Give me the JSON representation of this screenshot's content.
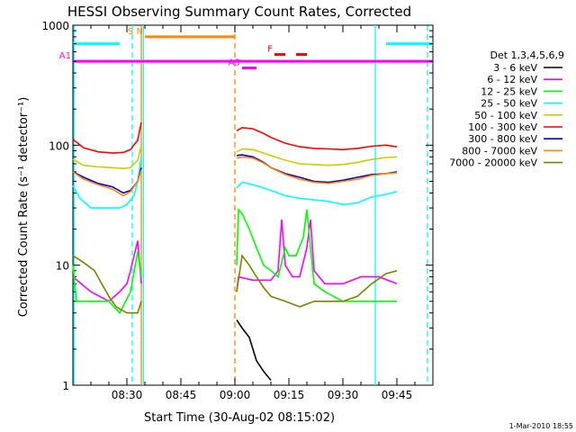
{
  "chart_data": {
    "type": "line",
    "title": "HESSI Observing Summary Count Rates, Corrected",
    "xlabel": "Start Time (30-Aug-02 08:15:02)",
    "ylabel": "Corrected Count Rate (s⁻¹ detector⁻¹)",
    "footer": "1-Mar-2010 18:55",
    "legend_title": "Det 1,3,4,5,6,9",
    "legend_placement": "right",
    "yscale": "log",
    "xlim_min": [
      15,
      115
    ],
    "ylim": [
      1,
      1000
    ],
    "xticks": [
      {
        "v": 30,
        "label": "08:30"
      },
      {
        "v": 45,
        "label": "08:45"
      },
      {
        "v": 60,
        "label": "09:00"
      },
      {
        "v": 75,
        "label": "09:15"
      },
      {
        "v": 90,
        "label": "09:30"
      },
      {
        "v": 105,
        "label": "09:45"
      }
    ],
    "yticks": [
      {
        "v": 1,
        "label": "1"
      },
      {
        "v": 10,
        "label": "10"
      },
      {
        "v": 100,
        "label": "100"
      },
      {
        "v": 1000,
        "label": "1000"
      }
    ],
    "series": [
      {
        "name": "3 - 6 keV",
        "color": "#000000",
        "points": [
          [
            60.5,
            3.5
          ],
          [
            62,
            3.0
          ],
          [
            64,
            2.5
          ],
          [
            66,
            1.6
          ],
          [
            68,
            1.3
          ],
          [
            70,
            1.1
          ]
        ]
      },
      {
        "name": "6 - 12 keV",
        "color": "#ff00ff",
        "points": [
          [
            15,
            8
          ],
          [
            20,
            6
          ],
          [
            25,
            5
          ],
          [
            28,
            6
          ],
          [
            30,
            7
          ],
          [
            31,
            9
          ],
          [
            32,
            12
          ],
          [
            33,
            16
          ],
          [
            34,
            7
          ],
          [
            60.5,
            6
          ],
          [
            61,
            8
          ],
          [
            65,
            7.5
          ],
          [
            70,
            7.5
          ],
          [
            72,
            9
          ],
          [
            73,
            24
          ],
          [
            74,
            10
          ],
          [
            76,
            8
          ],
          [
            78,
            8
          ],
          [
            80,
            14
          ],
          [
            81,
            24
          ],
          [
            82,
            9
          ],
          [
            85,
            7
          ],
          [
            90,
            7
          ],
          [
            95,
            8
          ],
          [
            100,
            8
          ],
          [
            105,
            7
          ]
        ]
      },
      {
        "name": "12 - 25 keV",
        "color": "#00ff00",
        "points": [
          [
            15,
            10
          ],
          [
            16,
            5
          ],
          [
            20,
            5
          ],
          [
            25,
            5
          ],
          [
            28,
            4
          ],
          [
            31,
            6
          ],
          [
            33,
            13
          ],
          [
            34,
            8
          ],
          [
            60.5,
            10
          ],
          [
            61,
            29
          ],
          [
            62,
            27
          ],
          [
            64,
            20
          ],
          [
            66,
            14
          ],
          [
            68,
            10
          ],
          [
            70,
            9
          ],
          [
            72,
            8
          ],
          [
            74,
            14
          ],
          [
            75,
            12
          ],
          [
            77,
            12
          ],
          [
            79,
            17
          ],
          [
            80,
            29
          ],
          [
            81,
            14
          ],
          [
            82,
            7
          ],
          [
            85,
            6
          ],
          [
            90,
            5
          ],
          [
            95,
            5
          ],
          [
            100,
            5
          ],
          [
            105,
            5
          ]
        ]
      },
      {
        "name": "25 - 50 keV",
        "color": "#00ffff",
        "points": [
          [
            15,
            46
          ],
          [
            17,
            36
          ],
          [
            20,
            30
          ],
          [
            25,
            30
          ],
          [
            28,
            30
          ],
          [
            30,
            32
          ],
          [
            32,
            38
          ],
          [
            33,
            50
          ],
          [
            34,
            80
          ],
          [
            60.5,
            44
          ],
          [
            62,
            49
          ],
          [
            65,
            47
          ],
          [
            68,
            44
          ],
          [
            70,
            42
          ],
          [
            74,
            38
          ],
          [
            78,
            36
          ],
          [
            82,
            35
          ],
          [
            86,
            34
          ],
          [
            90,
            32
          ],
          [
            94,
            33
          ],
          [
            98,
            37
          ],
          [
            102,
            39
          ],
          [
            105,
            41
          ]
        ]
      },
      {
        "name": "50 - 100 keV",
        "color": "#cccc00",
        "points": [
          [
            15,
            76
          ],
          [
            18,
            68
          ],
          [
            22,
            66
          ],
          [
            26,
            65
          ],
          [
            29,
            64
          ],
          [
            31,
            65
          ],
          [
            33,
            75
          ],
          [
            34,
            100
          ],
          [
            60.5,
            88
          ],
          [
            62,
            93
          ],
          [
            65,
            92
          ],
          [
            68,
            86
          ],
          [
            70,
            82
          ],
          [
            74,
            75
          ],
          [
            78,
            70
          ],
          [
            82,
            69
          ],
          [
            86,
            68
          ],
          [
            90,
            69
          ],
          [
            94,
            72
          ],
          [
            98,
            76
          ],
          [
            102,
            79
          ],
          [
            105,
            80
          ]
        ]
      },
      {
        "name": "100 - 300 keV",
        "color": "#ff0000",
        "points": [
          [
            15,
            112
          ],
          [
            18,
            95
          ],
          [
            22,
            88
          ],
          [
            26,
            86
          ],
          [
            29,
            87
          ],
          [
            31,
            92
          ],
          [
            33,
            110
          ],
          [
            34,
            155
          ],
          [
            60.5,
            132
          ],
          [
            62,
            140
          ],
          [
            65,
            137
          ],
          [
            68,
            125
          ],
          [
            70,
            116
          ],
          [
            74,
            104
          ],
          [
            78,
            97
          ],
          [
            82,
            94
          ],
          [
            86,
            93
          ],
          [
            90,
            92
          ],
          [
            94,
            94
          ],
          [
            98,
            98
          ],
          [
            102,
            100
          ],
          [
            105,
            97
          ]
        ]
      },
      {
        "name": "300 - 800 keV",
        "color": "#0000cc",
        "points": [
          [
            15,
            60
          ],
          [
            18,
            54
          ],
          [
            22,
            48
          ],
          [
            26,
            45
          ],
          [
            29,
            40
          ],
          [
            31,
            42
          ],
          [
            33,
            50
          ],
          [
            34,
            65
          ],
          [
            60.5,
            82
          ],
          [
            62,
            83
          ],
          [
            65,
            80
          ],
          [
            68,
            72
          ],
          [
            70,
            65
          ],
          [
            74,
            58
          ],
          [
            78,
            54
          ],
          [
            82,
            50
          ],
          [
            86,
            49
          ],
          [
            90,
            51
          ],
          [
            94,
            54
          ],
          [
            98,
            57
          ],
          [
            102,
            58
          ],
          [
            105,
            60
          ]
        ]
      },
      {
        "name": "800 - 7000 keV",
        "color": "#ff8800",
        "points": [
          [
            15,
            60
          ],
          [
            18,
            52
          ],
          [
            22,
            47
          ],
          [
            26,
            43
          ],
          [
            29,
            38
          ],
          [
            31,
            41
          ],
          [
            33,
            50
          ],
          [
            34,
            62
          ],
          [
            60.5,
            78
          ],
          [
            62,
            80
          ],
          [
            65,
            78
          ],
          [
            68,
            71
          ],
          [
            70,
            65
          ],
          [
            74,
            57
          ],
          [
            78,
            52
          ],
          [
            82,
            49
          ],
          [
            86,
            48
          ],
          [
            90,
            50
          ],
          [
            94,
            52
          ],
          [
            98,
            56
          ],
          [
            102,
            58
          ],
          [
            105,
            59
          ]
        ]
      },
      {
        "name": "7000 - 20000 keV",
        "color": "#808000",
        "points": [
          [
            15,
            12
          ],
          [
            17,
            11
          ],
          [
            19,
            10
          ],
          [
            21,
            9
          ],
          [
            23,
            7
          ],
          [
            25,
            5.5
          ],
          [
            27,
            4.5
          ],
          [
            30,
            4
          ],
          [
            33,
            4
          ],
          [
            34,
            5
          ],
          [
            60.5,
            6
          ],
          [
            62,
            12
          ],
          [
            64,
            10
          ],
          [
            66,
            8
          ],
          [
            68,
            6.5
          ],
          [
            70,
            5.5
          ],
          [
            74,
            5
          ],
          [
            78,
            4.5
          ],
          [
            82,
            5
          ],
          [
            86,
            5
          ],
          [
            90,
            5
          ],
          [
            94,
            5.5
          ],
          [
            98,
            7
          ],
          [
            102,
            8.5
          ],
          [
            105,
            9
          ]
        ]
      }
    ],
    "flags": [
      {
        "label": "A1",
        "color": "#ff00ff",
        "x0": 15,
        "x1": 115,
        "y": 500
      },
      {
        "label": "A3",
        "color": "#ff00ff",
        "x0": 62,
        "x1": 66,
        "y": 440
      },
      {
        "label": "F",
        "color": "#ff0000",
        "x0": 71,
        "x1": 74,
        "y": 570
      },
      {
        "label": "",
        "color": "#ff0000",
        "x0": 77,
        "x1": 80,
        "y": 570
      },
      {
        "label": "S N",
        "color": "#ff8800",
        "x0": 35,
        "x1": 60,
        "y": 800
      },
      {
        "label": "",
        "color": "#00ffff",
        "x0": 15,
        "x1": 28,
        "y": 700
      },
      {
        "label": "",
        "color": "#00ffff",
        "x0": 102,
        "x1": 115,
        "y": 700
      }
    ],
    "vlines": [
      {
        "x": 15.3,
        "color": "#00ffff",
        "dash": false
      },
      {
        "x": 31.5,
        "color": "#00ffff",
        "dash": true
      },
      {
        "x": 34,
        "color": "#ff8800",
        "dash": false
      },
      {
        "x": 34.6,
        "color": "#00ffff",
        "dash": false
      },
      {
        "x": 60,
        "color": "#ff8800",
        "dash": true
      },
      {
        "x": 99,
        "color": "#00ffff",
        "dash": false
      },
      {
        "x": 113.5,
        "color": "#00ffff",
        "dash": true
      }
    ]
  }
}
